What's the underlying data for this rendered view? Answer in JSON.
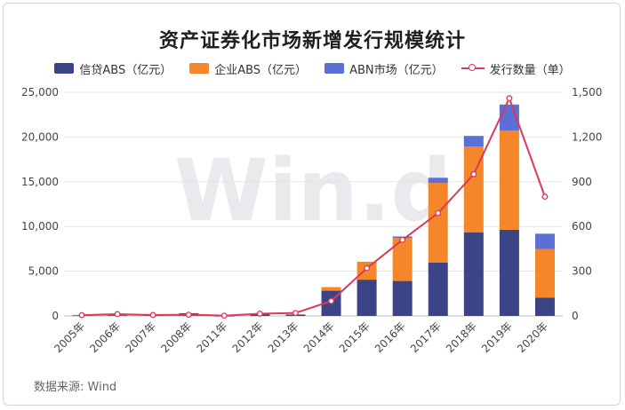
{
  "title": "资产证券化市场新增发行规模统计",
  "source": "数据来源: Wind",
  "watermark": "Win.d",
  "legend": [
    {
      "label": "信贷ABS（亿元）",
      "color": "#3b4585",
      "kind": "bar"
    },
    {
      "label": "企业ABS（亿元）",
      "color": "#f5872a",
      "kind": "bar"
    },
    {
      "label": "ABN市场（亿元）",
      "color": "#5b70d6",
      "kind": "bar"
    },
    {
      "label": "发行数量（单）",
      "color": "#d93a56",
      "kind": "line"
    }
  ],
  "chart_data": {
    "type": "bar",
    "stacked": true,
    "title": "资产证券化市场新增发行规模统计",
    "categories": [
      "2005年",
      "2006年",
      "2007年",
      "2008年",
      "2011年",
      "2012年",
      "2013年",
      "2014年",
      "2015年",
      "2016年",
      "2017年",
      "2018年",
      "2019年",
      "2020年"
    ],
    "series": [
      {
        "name": "信贷ABS（亿元）",
        "color": "#3b4585",
        "axis": "left",
        "values": [
          72,
          116,
          178,
          302,
          13,
          193,
          158,
          2820,
          4056,
          3909,
          5977,
          9324,
          9634,
          2041
        ]
      },
      {
        "name": "企业ABS（亿元）",
        "color": "#f5872a",
        "axis": "left",
        "values": [
          0,
          15,
          0,
          0,
          0,
          0,
          0,
          400,
          2000,
          4800,
          8900,
          9600,
          11100,
          5450
        ]
      },
      {
        "name": "ABN市场（亿元）",
        "color": "#5b70d6",
        "axis": "left",
        "values": [
          0,
          0,
          0,
          0,
          0,
          0,
          0,
          0,
          0,
          170,
          570,
          1200,
          2900,
          1700
        ]
      },
      {
        "name": "发行数量（单）",
        "color": "#d93a56",
        "axis": "right",
        "type": "line",
        "values": [
          5,
          12,
          6,
          8,
          2,
          15,
          20,
          100,
          320,
          510,
          690,
          950,
          1460,
          800
        ]
      }
    ],
    "ylim": [
      0,
      25000
    ],
    "yticks": [
      "0",
      "5,000",
      "10,000",
      "15,000",
      "20,000",
      "25,000"
    ],
    "y2lim": [
      0,
      1500
    ],
    "y2ticks": [
      "0",
      "300",
      "600",
      "900",
      "1,200",
      "1,500"
    ],
    "grid": true,
    "legend_position": "top"
  }
}
